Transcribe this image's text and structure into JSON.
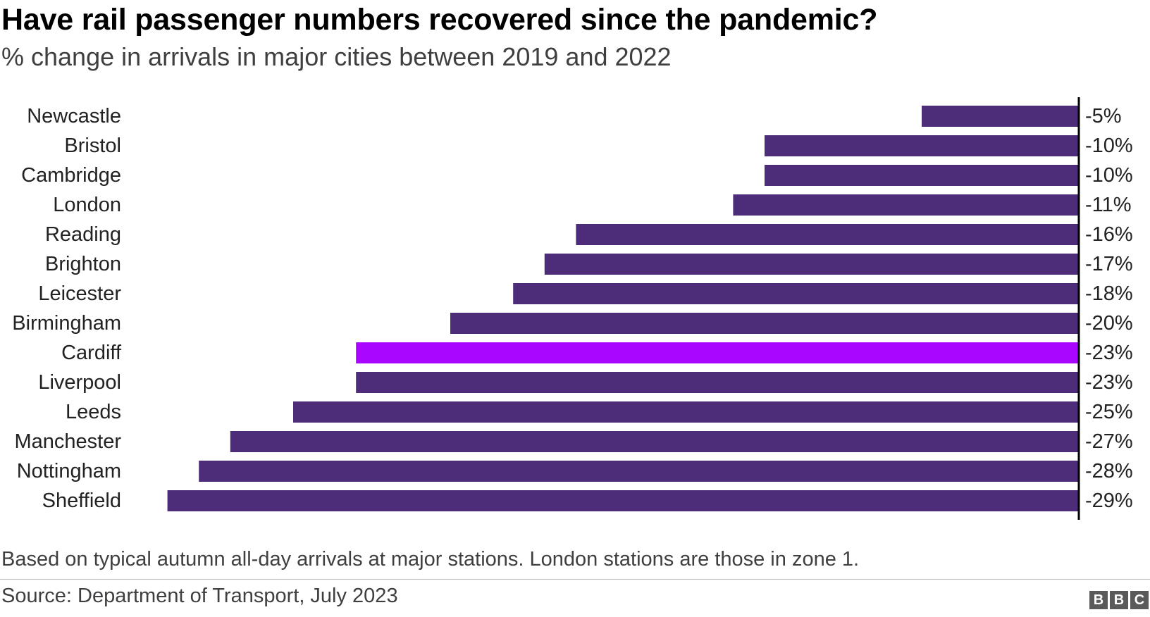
{
  "title": "Have rail passenger numbers recovered since the pandemic?",
  "subtitle": "% change in arrivals in major cities between 2019 and 2022",
  "footnote": "Based on typical autumn all-day arrivals at major stations. London stations are those in zone 1.",
  "source": "Source: Department of Transport, July 2023",
  "logo": [
    "B",
    "B",
    "C"
  ],
  "colors": {
    "bar": "#4d2c7a",
    "highlight": "#a806ff",
    "axis": "#000000",
    "text": "#222222"
  },
  "chart_data": {
    "type": "bar",
    "orientation": "horizontal",
    "title": "Have rail passenger numbers recovered since the pandemic?",
    "subtitle": "% change in arrivals in major cities between 2019 and 2022",
    "xlabel": "",
    "ylabel": "",
    "grid": false,
    "xlim": [
      -29,
      0
    ],
    "categories": [
      "Newcastle",
      "Bristol",
      "Cambridge",
      "London",
      "Reading",
      "Brighton",
      "Leicester",
      "Birmingham",
      "Cardiff",
      "Liverpool",
      "Leeds",
      "Manchester",
      "Nottingham",
      "Sheffield"
    ],
    "values": [
      -5,
      -10,
      -10,
      -11,
      -16,
      -17,
      -18,
      -20,
      -23,
      -23,
      -25,
      -27,
      -28,
      -29
    ],
    "data_labels": [
      "-5%",
      "-10%",
      "-10%",
      "-11%",
      "-16%",
      "-17%",
      "-18%",
      "-20%",
      "-23%",
      "-23%",
      "-25%",
      "-27%",
      "-28%",
      "-29%"
    ],
    "highlight": "Cardiff"
  }
}
